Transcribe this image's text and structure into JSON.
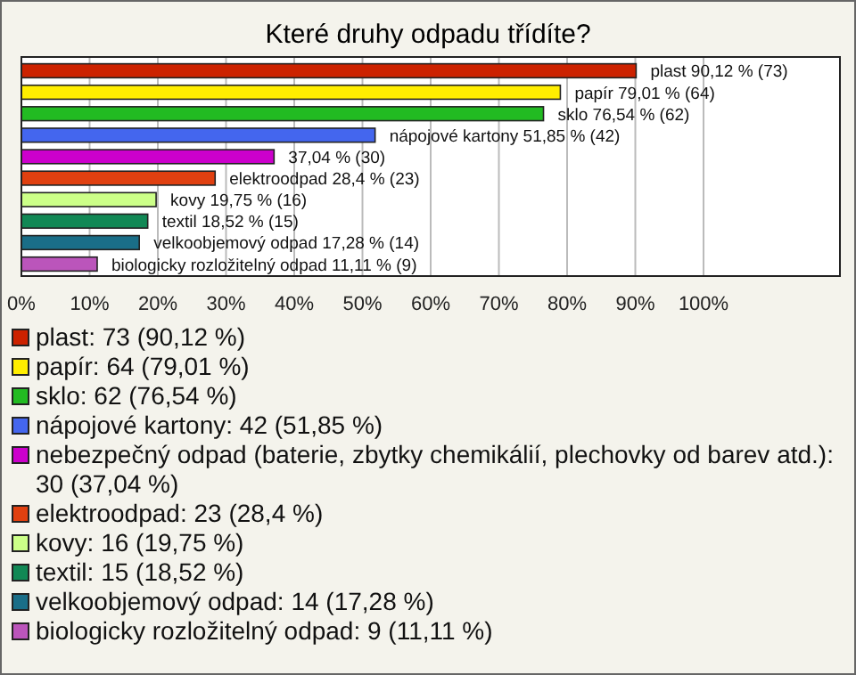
{
  "chart_data": {
    "type": "bar",
    "orientation": "horizontal",
    "title": "Které druhy odpadu třídíte?",
    "categories": [
      null,
      null,
      null,
      null,
      null,
      null,
      null,
      null,
      null,
      null
    ],
    "series": [
      {
        "name": "plast: 73 (90,12 %)",
        "color": "#cc2200",
        "values": [
          90.12,
          null,
          null,
          null,
          null,
          null,
          null,
          null,
          null,
          null
        ],
        "value_labels": [
          "plast 90,12 % (73)",
          null,
          null,
          null,
          null,
          null,
          null,
          null,
          null,
          null
        ]
      },
      {
        "name": "papír: 64 (79,01 %)",
        "color": "#ffee00",
        "values": [
          null,
          79.01,
          null,
          null,
          null,
          null,
          null,
          null,
          null,
          null
        ],
        "value_labels": [
          null,
          "papír 79,01 % (64)",
          null,
          null,
          null,
          null,
          null,
          null,
          null,
          null
        ]
      },
      {
        "name": "sklo: 62 (76,54 %)",
        "color": "#22bb22",
        "values": [
          null,
          null,
          76.54,
          null,
          null,
          null,
          null,
          null,
          null,
          null
        ],
        "value_labels": [
          null,
          null,
          "sklo 76,54 % (62)",
          null,
          null,
          null,
          null,
          null,
          null,
          null
        ]
      },
      {
        "name": "nápojové kartony: 42 (51,85 %)",
        "color": "#4466ee",
        "values": [
          null,
          null,
          null,
          51.85,
          null,
          null,
          null,
          null,
          null,
          null
        ],
        "value_labels": [
          null,
          null,
          null,
          "nápojové kartony 51,85 % (42)",
          null,
          null,
          null,
          null,
          null,
          null
        ]
      },
      {
        "name": "nebezpečný odpad (baterie, zbytky chemikálií, plechovky od barev atd.): 30 (37,04 %)",
        "color": "#cc00cc",
        "values": [
          null,
          null,
          null,
          null,
          37.04,
          null,
          null,
          null,
          null,
          null
        ],
        "value_labels": [
          null,
          null,
          null,
          null,
          "37,04 % (30)",
          null,
          null,
          null,
          null,
          null
        ]
      },
      {
        "name": "elektroodpad: 23 (28,4 %)",
        "color": "#e04010",
        "values": [
          null,
          null,
          null,
          null,
          null,
          28.4,
          null,
          null,
          null,
          null
        ],
        "value_labels": [
          null,
          null,
          null,
          null,
          null,
          "elektroodpad 28,4 % (23)",
          null,
          null,
          null,
          null
        ]
      },
      {
        "name": "kovy: 16 (19,75 %)",
        "color": "#ccff88",
        "values": [
          null,
          null,
          null,
          null,
          null,
          null,
          19.75,
          null,
          null,
          null
        ],
        "value_labels": [
          null,
          null,
          null,
          null,
          null,
          null,
          "kovy 19,75 % (16)",
          null,
          null,
          null
        ]
      },
      {
        "name": "textil: 15 (18,52 %)",
        "color": "#118855",
        "values": [
          null,
          null,
          null,
          null,
          null,
          null,
          null,
          18.52,
          null,
          null
        ],
        "value_labels": [
          null,
          null,
          null,
          null,
          null,
          null,
          null,
          "textil 18,52 % (15)",
          null,
          null
        ]
      },
      {
        "name": "velkoobjemový odpad: 14 (17,28 %)",
        "color": "#1a6e88",
        "values": [
          null,
          null,
          null,
          null,
          null,
          null,
          null,
          null,
          17.28,
          null
        ],
        "value_labels": [
          null,
          null,
          null,
          null,
          null,
          null,
          null,
          null,
          "velkoobjemový odpad 17,28 % (14)",
          null
        ]
      },
      {
        "name": "biologicky rozložitelný odpad: 9 (11,11 %)",
        "color": "#bb55bb",
        "values": [
          null,
          null,
          null,
          null,
          null,
          null,
          null,
          null,
          null,
          11.11
        ],
        "value_labels": [
          null,
          null,
          null,
          null,
          null,
          null,
          null,
          null,
          null,
          "biologicky rozložitelný odpad 11,11 % (9)"
        ]
      }
    ],
    "xlim": [
      0,
      120
    ],
    "xticks": [
      {
        "value": 0,
        "label": "0%"
      },
      {
        "value": 10,
        "label": "10%"
      },
      {
        "value": 20,
        "label": "20%"
      },
      {
        "value": 30,
        "label": "30%"
      },
      {
        "value": 40,
        "label": "40%"
      },
      {
        "value": 50,
        "label": "50%"
      },
      {
        "value": 60,
        "label": "60%"
      },
      {
        "value": 70,
        "label": "70%"
      },
      {
        "value": 80,
        "label": "80%"
      },
      {
        "value": 90,
        "label": "90%"
      },
      {
        "value": 100,
        "label": "100%"
      }
    ],
    "grid": "x",
    "legend": "bottom",
    "tick_labels": "x"
  }
}
